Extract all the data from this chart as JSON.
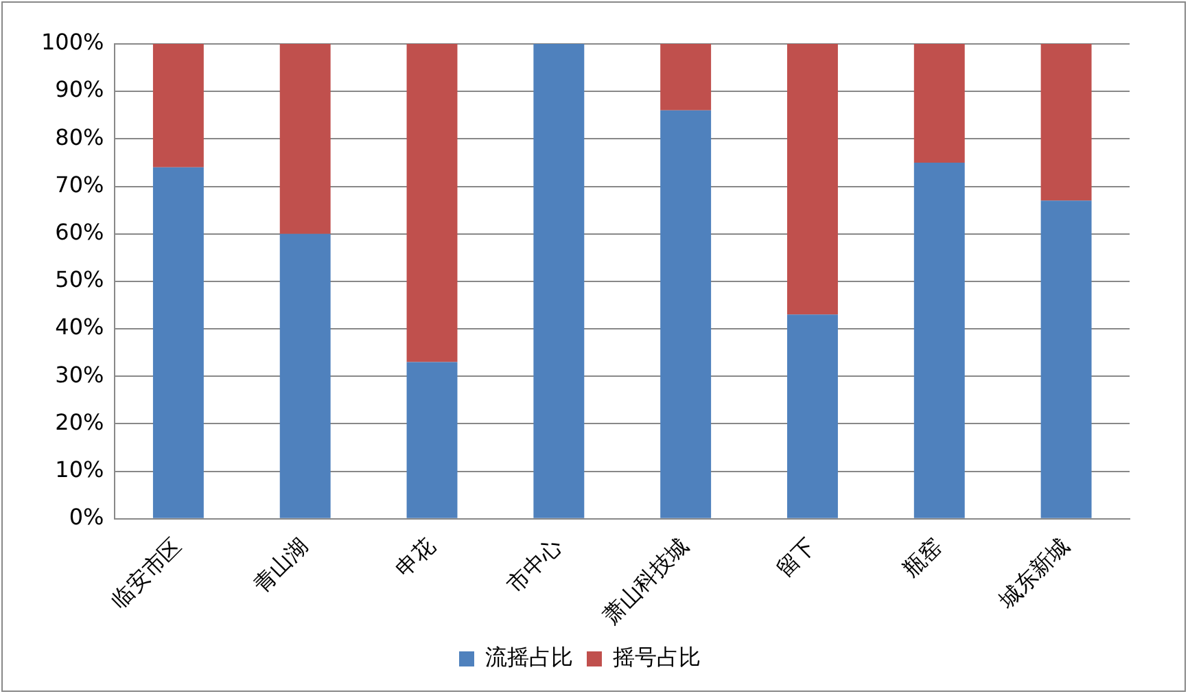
{
  "chart_data": {
    "type": "bar",
    "stacked": true,
    "categories": [
      "临安市区",
      "青山湖",
      "申花",
      "市中心",
      "萧山科技城",
      "留下",
      "瓶窑",
      "城东新城"
    ],
    "series": [
      {
        "name": "流摇占比",
        "color": "#4f81bd",
        "values": [
          74,
          60,
          33,
          100,
          86,
          43,
          75,
          67
        ]
      },
      {
        "name": "摇号占比",
        "color": "#c0504d",
        "values": [
          26,
          40,
          67,
          0,
          14,
          57,
          25,
          33
        ]
      }
    ],
    "ylim": [
      0,
      100
    ],
    "yticks": [
      {
        "value": 0,
        "label": "0%"
      },
      {
        "value": 10,
        "label": "10%"
      },
      {
        "value": 20,
        "label": "20%"
      },
      {
        "value": 30,
        "label": "30%"
      },
      {
        "value": 40,
        "label": "40%"
      },
      {
        "value": 50,
        "label": "50%"
      },
      {
        "value": 60,
        "label": "60%"
      },
      {
        "value": 70,
        "label": "70%"
      },
      {
        "value": 80,
        "label": "80%"
      },
      {
        "value": 90,
        "label": "90%"
      },
      {
        "value": 100,
        "label": "100%"
      }
    ],
    "grid": "y",
    "legend": "bottom"
  }
}
